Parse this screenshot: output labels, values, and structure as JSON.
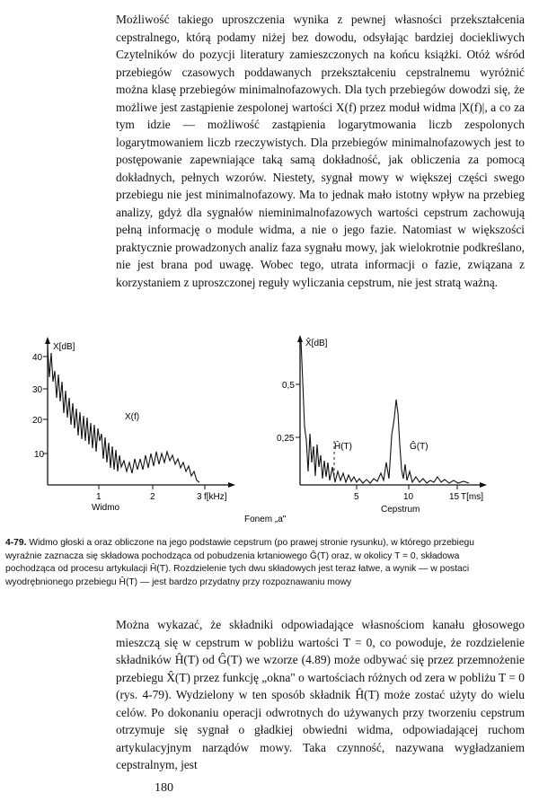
{
  "body_text": {
    "paragraph_1": "Możliwość takiego uproszczenia wynika z pewnej własności przekształcenia cepstralnego, którą podamy niżej bez dowodu, odsyłając bardziej dociekliwych Czytelników do pozycji literatury zamieszczonych na końcu książki. Otóż wśród przebiegów czasowych poddawanych przekształceniu cepstralnemu wyróżnić można klasę przebiegów minimalnofazowych. Dla tych przebiegów dowodzi się, że możliwe jest zastąpienie zespolonej wartości X(f) przez moduł widma |X(f)|, a co za tym idzie — możliwość zastąpienia logarytmowania liczb zespolonych logarytmowaniem liczb rzeczywistych. Dla przebiegów minimalnofazowych jest to postępowanie zapewniające taką samą dokładność, jak obliczenia za pomocą dokładnych, pełnych wzorów. Niestety, sygnał mowy w większej części swego przebiegu nie jest minimalnofazowy. Ma to jednak mało istotny wpływ na przebieg analizy, gdyż dla sygnałów nieminimalnofazowych wartości cepstrum zachowują pełną informację o module widma, a nie o jego fazie. Natomiast w większości praktycznie prowadzonych analiz faza sygnału mowy, jak wielokrotnie podkreślano, nie jest brana pod uwagę. Wobec tego, utrata informacji o fazie, związana z korzystaniem z uproszczonej reguły wyliczania cepstrum, nie jest stratą ważną.",
    "paragraph_2": "Można wykazać, że składniki odpowiadające własnościom kanału głosowego mieszczą się w cepstrum w pobliżu wartości T = 0, co powoduje, że rozdzielenie składników Ĥ(T) od Ĝ(T) we wzorze (4.89) może odbywać się przez przemnożenie przebiegu X̂(T) przez funkcję „okna\" o wartościach różnych od zera w pobliżu T = 0 (rys. 4-79). Wydzielony w ten sposób składnik Ĥ(T) może zostać użyty do wielu celów. Po dokonaniu operacji odwrotnych do używanych przy tworzeniu cepstrum otrzymuje się sygnał o gładkiej obwiedni widma, odpowiadającej ruchom artykulacyjnym narządów mowy. Taka czynność, nazywana wygładzaniem cepstralnym, jest"
  },
  "figure": {
    "left_plot": {
      "y_axis_label": "X[dB]",
      "y_ticks": [
        "40",
        "30",
        "20",
        "10"
      ],
      "x_ticks": [
        "1",
        "2",
        "3"
      ],
      "x_axis_label": "f[kHz]",
      "curve_label": "X(f)",
      "title": "Widmo"
    },
    "right_plot": {
      "y_axis_label": "X̂[dB]",
      "y_ticks": [
        "0,5",
        "0,25"
      ],
      "x_ticks": [
        "5",
        "10",
        "15"
      ],
      "x_axis_label": "T[ms]",
      "component_h_label": "Ĥ(T)",
      "component_g_label": "Ĝ(T)",
      "title": "Cepstrum"
    },
    "shared_label": "Fonem „a\"",
    "caption_number": "4-79.",
    "caption_text": "Widmo głoski a oraz obliczone na jego podstawie cepstrum (po prawej stronie rysunku), w którego przebiegu wyraźnie zaznacza się składowa pochodząca od pobudzenia krtaniowego Ĝ(T) oraz, w okolicy T = 0, składowa pochodząca od procesu artykulacji Ĥ(T). Rozdzielenie tych dwu składowych jest teraz łatwe, a wynik — w postaci wyodrębnionego przebiegu Ĥ(T) — jest bardzo przydatny przy rozpoznawaniu mowy"
  },
  "page_number": "180"
}
